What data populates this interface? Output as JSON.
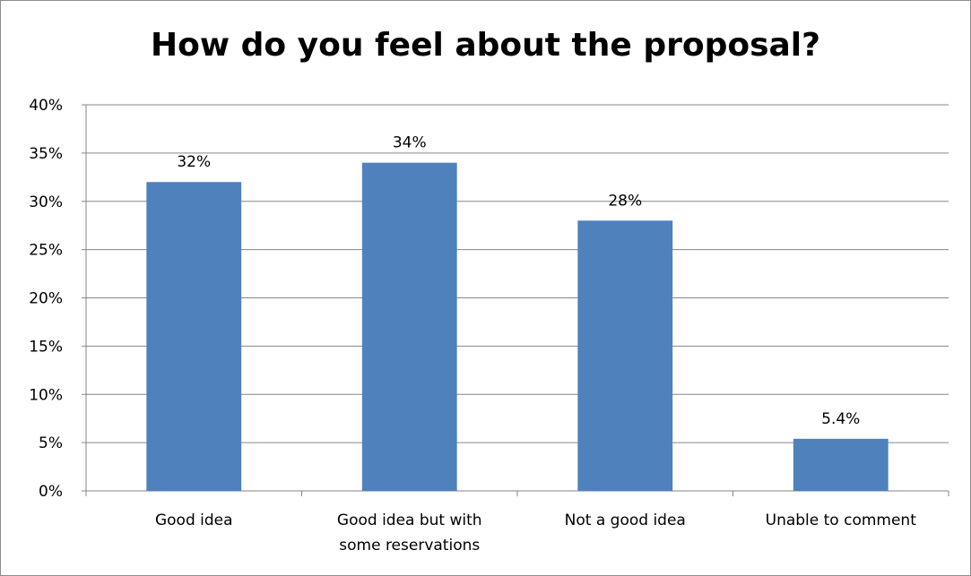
{
  "chart_data": {
    "type": "bar",
    "title": "How do you feel about the proposal?",
    "xlabel": "",
    "ylabel": "",
    "categories": [
      [
        "Good idea"
      ],
      [
        "Good idea but with",
        "some reservations"
      ],
      [
        "Not a good idea"
      ],
      [
        "Unable to comment"
      ]
    ],
    "values": [
      32,
      34,
      28,
      5.4
    ],
    "data_labels": [
      "32%",
      "34%",
      "28%",
      "5.4%"
    ],
    "ylim": [
      0,
      40
    ],
    "yticks": [
      0,
      5,
      10,
      15,
      20,
      25,
      30,
      35,
      40
    ],
    "ytick_labels": [
      "0%",
      "5%",
      "10%",
      "15%",
      "20%",
      "25%",
      "30%",
      "35%",
      "40%"
    ],
    "grid": true,
    "legend": "none",
    "bar_color": "#4f81bd",
    "grid_color": "#868686"
  }
}
